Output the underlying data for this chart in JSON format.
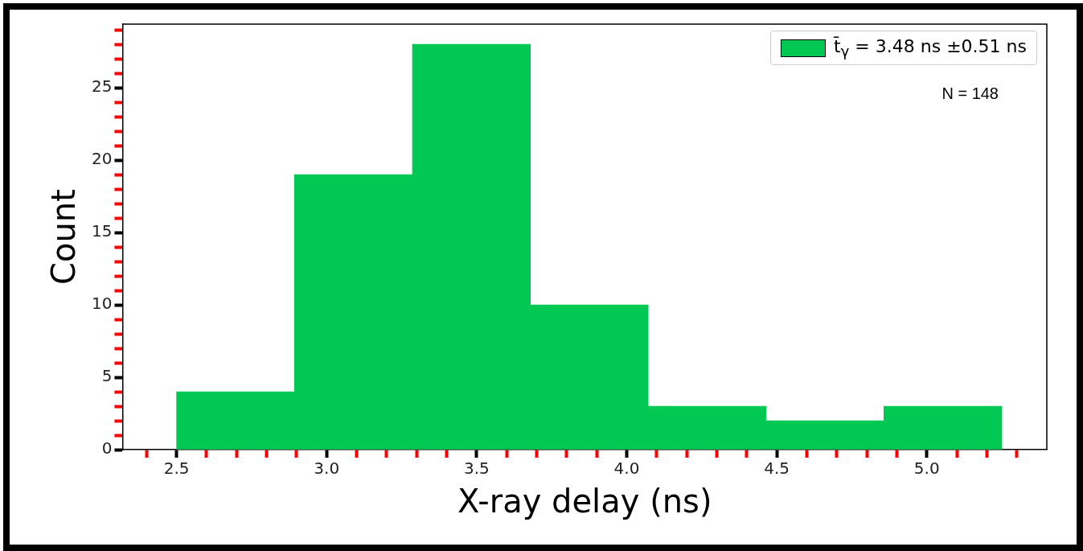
{
  "chart_data": {
    "type": "histogram",
    "xlabel": "X-ray delay (ns)",
    "ylabel": "Count",
    "bins": [
      2.5,
      2.893,
      3.286,
      3.679,
      4.071,
      4.464,
      4.857,
      5.25
    ],
    "series": [
      {
        "name": "t̄$_{γ}$ = 3.48 ns ±0.51 ns",
        "color": "#00c853",
        "values": [
          4,
          19,
          28,
          10,
          3,
          2,
          3
        ]
      }
    ],
    "xlim": [
      2.32,
      5.4
    ],
    "ylim": [
      0,
      29.4
    ],
    "xticks": [
      {
        "value": 2.4,
        "label": null
      },
      2.5,
      {
        "value": 2.6,
        "label": null
      },
      {
        "value": 2.7,
        "label": null
      },
      {
        "value": 2.8,
        "label": null
      },
      {
        "value": 2.9,
        "label": null
      },
      {
        "value": 3,
        "label": "3.0"
      },
      {
        "value": 3.1,
        "label": null
      },
      {
        "value": 3.2,
        "label": null
      },
      {
        "value": 3.3,
        "label": null
      },
      {
        "value": 3.4,
        "label": null
      },
      3.5,
      {
        "value": 3.6,
        "label": null
      },
      {
        "value": 3.7,
        "label": null
      },
      {
        "value": 3.8,
        "label": null
      },
      {
        "value": 3.9,
        "label": null
      },
      {
        "value": 4,
        "label": "4.0"
      },
      {
        "value": 4.1,
        "label": null
      },
      {
        "value": 4.2,
        "label": null
      },
      {
        "value": 4.3,
        "label": null
      },
      {
        "value": 4.4,
        "label": null
      },
      4.5,
      {
        "value": 4.6,
        "label": null
      },
      {
        "value": 4.7,
        "label": null
      },
      {
        "value": 4.8,
        "label": null
      },
      {
        "value": 4.9,
        "label": null
      },
      {
        "value": 5,
        "label": "5.0"
      },
      {
        "value": 5.1,
        "label": null
      },
      {
        "value": 5.2,
        "label": null
      },
      {
        "value": 5.3,
        "label": null
      }
    ],
    "yticks": [
      0,
      {
        "value": 1,
        "label": null
      },
      {
        "value": 2,
        "label": null
      },
      {
        "value": 3,
        "label": null
      },
      {
        "value": 4,
        "label": null
      },
      5,
      {
        "value": 6,
        "label": null
      },
      {
        "value": 7,
        "label": null
      },
      {
        "value": 8,
        "label": null
      },
      {
        "value": 9,
        "label": null
      },
      10,
      {
        "value": 11,
        "label": null
      },
      {
        "value": 12,
        "label": null
      },
      {
        "value": 13,
        "label": null
      },
      {
        "value": 14,
        "label": null
      },
      15,
      {
        "value": 16,
        "label": null
      },
      {
        "value": 17,
        "label": null
      },
      {
        "value": 18,
        "label": null
      },
      {
        "value": 19,
        "label": null
      },
      20,
      {
        "value": 21,
        "label": null
      },
      {
        "value": 22,
        "label": null
      },
      {
        "value": 23,
        "label": null
      },
      {
        "value": 24,
        "label": null
      },
      25,
      {
        "value": 26,
        "label": null
      },
      {
        "value": 27,
        "label": null
      },
      {
        "value": 28,
        "label": null
      },
      {
        "value": 29,
        "label": null
      }
    ],
    "legend": "top right",
    "grid": false,
    "annotations": [
      "N = 148"
    ]
  }
}
